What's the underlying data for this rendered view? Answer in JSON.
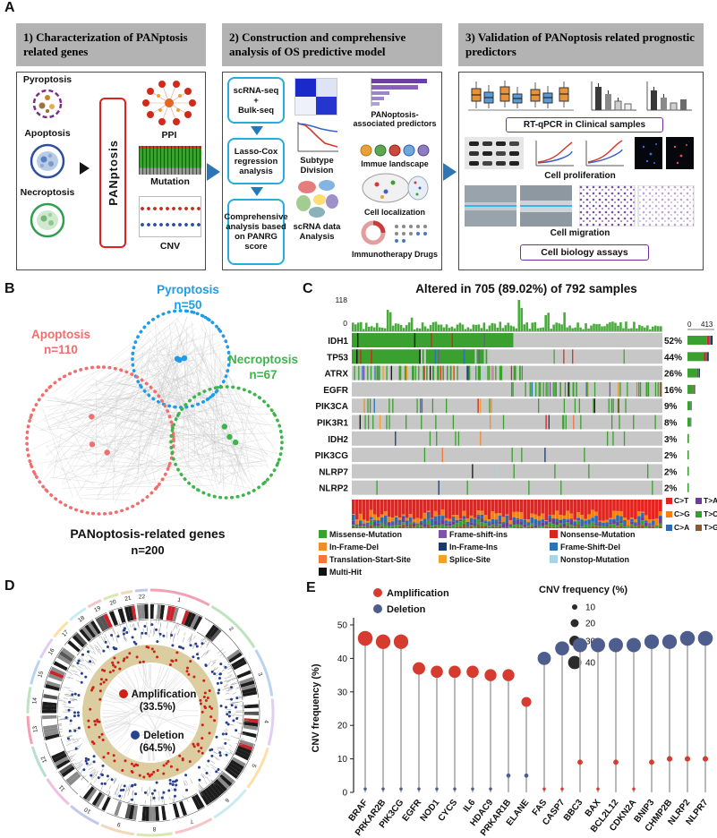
{
  "panels": {
    "a": {
      "label": "A",
      "steps": [
        {
          "title": "1)  Characterization of PANptosis related genes",
          "inputs": [
            "Pyroptosis",
            "Apoptosis",
            "Necroptosis"
          ],
          "center_box": "PANptosis",
          "outputs": [
            "PPI",
            "Mutation",
            "CNV"
          ]
        },
        {
          "title": "2)  Construction and comprehensive analysis of OS predictive model",
          "flow_boxes": [
            "scRNA-seq\n+\nBulk-seq",
            "Lasso-Cox regression analysis",
            "Comprehensive analysis based on PANRG score"
          ],
          "middle_labels": [
            "Subtype Division",
            "scRNA data Analysis"
          ],
          "right_labels": [
            "PANoptosis- associated predictors",
            "Immue landscape",
            "Cell localization",
            "Immunotherapy  Drugs"
          ]
        },
        {
          "title": "3)  Validation of PANoptosis related prognostic predictors",
          "outputs": [
            "RT-qPCR in Clinical samples",
            "Cell proliferation",
            "Cell migration",
            "Cell biology assays"
          ]
        }
      ]
    },
    "b": {
      "label": "B",
      "groups": [
        {
          "name": "Pyroptosis",
          "n": "n=50",
          "color": "#1e9be9"
        },
        {
          "name": "Apoptosis",
          "n": "n=110",
          "color": "#f26d6d"
        },
        {
          "name": "Necroptosis",
          "n": "n=67",
          "color": "#3cb54a"
        }
      ],
      "total_label": "PANoptosis-related genes",
      "total_n": "n=200"
    },
    "c": {
      "label": "C",
      "title": "Altered in 705 (89.02%) of 792 samples",
      "tmb_axis": {
        "max": "118",
        "min": "0"
      },
      "right_axis": {
        "min": "0",
        "max": "413"
      },
      "chart_data": {
        "type": "oncoprint",
        "samples_total": 792,
        "samples_altered": 705,
        "genes": [
          {
            "name": "IDH1",
            "pct": 52
          },
          {
            "name": "TP53",
            "pct": 44
          },
          {
            "name": "ATRX",
            "pct": 26
          },
          {
            "name": "EGFR",
            "pct": 16
          },
          {
            "name": "PIK3CA",
            "pct": 9
          },
          {
            "name": "PIK3R1",
            "pct": 8
          },
          {
            "name": "IDH2",
            "pct": 3
          },
          {
            "name": "PIK3CG",
            "pct": 2
          },
          {
            "name": "NLRP7",
            "pct": 2
          },
          {
            "name": "NLRP2",
            "pct": 2
          }
        ]
      },
      "snv_legend": [
        {
          "label": "C>T",
          "color": "#e4231f"
        },
        {
          "label": "C>G",
          "color": "#ff7f00"
        },
        {
          "label": "C>A",
          "color": "#2b6cb0"
        },
        {
          "label": "T>A",
          "color": "#6a3d9a"
        },
        {
          "label": "T>C",
          "color": "#33a02c"
        },
        {
          "label": "T>G",
          "color": "#8c5a2b"
        }
      ],
      "mutation_legend": [
        {
          "label": "Missense-Mutation",
          "color": "#3aa02f"
        },
        {
          "label": "Frame-shift-ins",
          "color": "#7b52a7"
        },
        {
          "label": "Nonsense-Mutation",
          "color": "#d7261d"
        },
        {
          "label": "In-Frame-Del",
          "color": "#f28c28"
        },
        {
          "label": "In-Frame-Ins",
          "color": "#1a3a6b"
        },
        {
          "label": "Frame-Shift-Del",
          "color": "#2d74b5"
        },
        {
          "label": "Translation-Start-Site",
          "color": "#f4743b"
        },
        {
          "label": "Splice-Site",
          "color": "#f2a22b"
        },
        {
          "label": "Nonstop-Mutation",
          "color": "#a8d5e5"
        },
        {
          "label": "Multi-Hit",
          "color": "#111111"
        }
      ]
    },
    "d": {
      "label": "D",
      "legend": [
        {
          "name": "Amplification",
          "pct": "(33.5%)",
          "color": "#cf2018"
        },
        {
          "name": "Deletion",
          "pct": "(64.5%)",
          "color": "#27418f"
        }
      ],
      "chromosomes": [
        "1",
        "2",
        "3",
        "4",
        "5",
        "6",
        "7",
        "8",
        "9",
        "10",
        "11",
        "12",
        "13",
        "14",
        "15",
        "16",
        "17",
        "18",
        "19",
        "20",
        "21",
        "22"
      ]
    },
    "e": {
      "label": "E",
      "chart_data": {
        "type": "scatter",
        "ylabel": "CNV frequency (%)",
        "ylim": [
          0,
          50
        ],
        "yticks": [
          0,
          10,
          20,
          30,
          40,
          50
        ],
        "categories": [
          "BRAF",
          "PRKAR2B",
          "PIK3CG",
          "EGFR",
          "NOD1",
          "CYCS",
          "IL6",
          "HDAC9",
          "PRKAR1B",
          "ELANE",
          "FAS",
          "CASP7",
          "BBC3",
          "BAX",
          "BCL2L12",
          "CDKN2A",
          "BNIP3",
          "CHMP2B",
          "NLRP2",
          "NLPR7"
        ],
        "series": [
          {
            "name": "Amplification",
            "color": "#d63b2f",
            "values": [
              46,
              45,
              45,
              37,
              36,
              36,
              36,
              35,
              35,
              27,
              1,
              1,
              9,
              1,
              9,
              1,
              9,
              10,
              10,
              10
            ]
          },
          {
            "name": "Deletion",
            "color": "#4d5d8d",
            "values": [
              1,
              1,
              1,
              1,
              1,
              1,
              1,
              1,
              5,
              5,
              40,
              43,
              44,
              44,
              44,
              44,
              45,
              45,
              46,
              46
            ]
          }
        ],
        "size_legend": {
          "title": "CNV frequency (%)",
          "values": [
            10,
            20,
            30,
            40
          ]
        }
      }
    }
  }
}
